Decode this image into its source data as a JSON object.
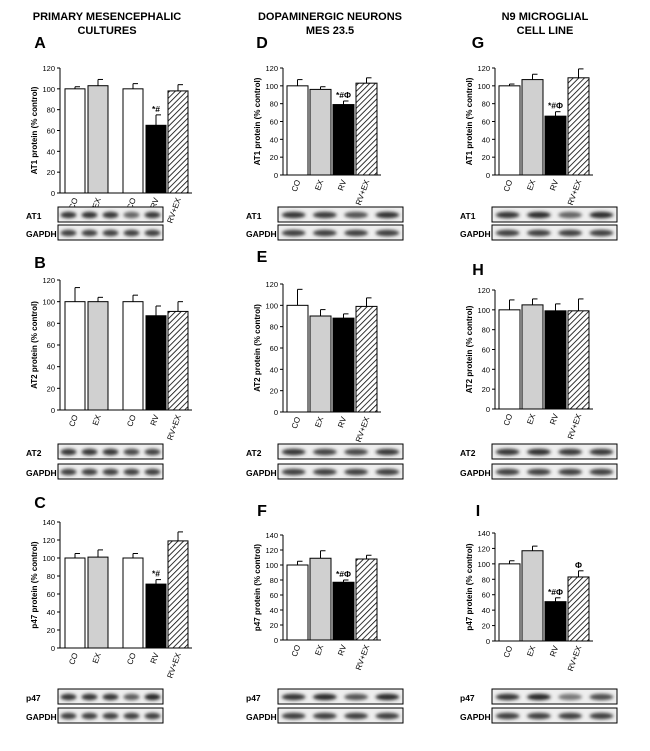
{
  "headers": [
    {
      "line1": "PRIMARY MESENCEPHALIC",
      "line2": "CULTURES"
    },
    {
      "line1": "DOPAMINERGIC NEURONS",
      "line2": "MES 23.5"
    },
    {
      "line1": "N9 MICROGLIAL",
      "line2": "CELL LINE"
    }
  ],
  "blot_labels": {
    "gapdh": "GAPDH"
  },
  "colors": {
    "co": "#ffffff",
    "ex": "#d0d0d0",
    "rv": "#000000",
    "rvex": "hatched"
  },
  "chart_data": [
    {
      "type": "bar",
      "panel": "A",
      "ylabel": "AT1 protein (% control)",
      "ylim": [
        0,
        120
      ],
      "ticks": [
        0,
        20,
        40,
        60,
        80,
        100,
        120
      ],
      "categories": [
        "CO",
        "EX",
        "CO",
        "RV",
        "RV+EX"
      ],
      "values": [
        100,
        103,
        100,
        65,
        98
      ],
      "errors": [
        2,
        6,
        5,
        10,
        6
      ],
      "annotations": [
        "",
        "",
        "",
        "*#",
        ""
      ],
      "blot_protein": "AT1"
    },
    {
      "type": "bar",
      "panel": "B",
      "ylabel": "AT2 protein (% control)",
      "ylim": [
        0,
        120
      ],
      "ticks": [
        0,
        20,
        40,
        60,
        80,
        100,
        120
      ],
      "categories": [
        "CO",
        "EX",
        "CO",
        "RV",
        "RV+EX"
      ],
      "values": [
        100,
        100,
        100,
        87,
        91
      ],
      "errors": [
        13,
        4,
        6,
        9,
        9
      ],
      "annotations": [
        "",
        "",
        "",
        "",
        ""
      ],
      "blot_protein": "AT2"
    },
    {
      "type": "bar",
      "panel": "C",
      "ylabel": "p47 protein (% control)",
      "ylim": [
        0,
        140
      ],
      "ticks": [
        0,
        20,
        40,
        60,
        80,
        100,
        120,
        140
      ],
      "categories": [
        "CO",
        "EX",
        "CO",
        "RV",
        "RV+EX"
      ],
      "values": [
        100,
        101,
        100,
        71,
        119
      ],
      "errors": [
        5,
        8,
        5,
        5,
        10
      ],
      "annotations": [
        "",
        "",
        "",
        "*#",
        ""
      ],
      "blot_protein": "p47"
    },
    {
      "type": "bar",
      "panel": "D",
      "ylabel": "AT1 protein (% control)",
      "ylim": [
        0,
        120
      ],
      "ticks": [
        0,
        20,
        40,
        60,
        80,
        100,
        120
      ],
      "categories": [
        "CO",
        "EX",
        "RV",
        "RV+EX"
      ],
      "values": [
        100,
        96,
        79,
        103
      ],
      "errors": [
        7,
        3,
        4,
        6
      ],
      "annotations": [
        "",
        "",
        "*#Φ",
        ""
      ],
      "blot_protein": "AT1"
    },
    {
      "type": "bar",
      "panel": "E",
      "ylabel": "AT2 protein (% control)",
      "ylim": [
        0,
        120
      ],
      "ticks": [
        0,
        20,
        40,
        60,
        80,
        100,
        120
      ],
      "categories": [
        "CO",
        "EX",
        "RV",
        "RV+EX"
      ],
      "values": [
        100,
        90,
        88,
        99
      ],
      "errors": [
        15,
        6,
        4,
        8
      ],
      "annotations": [
        "",
        "",
        "",
        ""
      ],
      "blot_protein": "AT2"
    },
    {
      "type": "bar",
      "panel": "F",
      "ylabel": "p47 protein (% control)",
      "ylim": [
        0,
        140
      ],
      "ticks": [
        0,
        20,
        40,
        60,
        80,
        100,
        120,
        140
      ],
      "categories": [
        "CO",
        "EX",
        "RV",
        "RV+EX"
      ],
      "values": [
        100,
        109,
        77,
        108
      ],
      "errors": [
        5,
        10,
        3,
        5
      ],
      "annotations": [
        "",
        "",
        "*#Φ",
        ""
      ],
      "blot_protein": "p47"
    },
    {
      "type": "bar",
      "panel": "G",
      "ylabel": "AT1 protein (% control)",
      "ylim": [
        0,
        120
      ],
      "ticks": [
        0,
        20,
        40,
        60,
        80,
        100,
        120
      ],
      "categories": [
        "CO",
        "EX",
        "RV",
        "RV+EX"
      ],
      "values": [
        100,
        107,
        66,
        109
      ],
      "errors": [
        2,
        6,
        5,
        10
      ],
      "annotations": [
        "",
        "",
        "*#Φ",
        ""
      ],
      "blot_protein": "AT1"
    },
    {
      "type": "bar",
      "panel": "H",
      "ylabel": "AT2 protein (% control)",
      "ylim": [
        0,
        120
      ],
      "ticks": [
        0,
        20,
        40,
        60,
        80,
        100,
        120
      ],
      "categories": [
        "CO",
        "EX",
        "RV",
        "RV+EX"
      ],
      "values": [
        100,
        105,
        99,
        99
      ],
      "errors": [
        10,
        6,
        7,
        12
      ],
      "annotations": [
        "",
        "",
        "",
        ""
      ],
      "blot_protein": "AT2"
    },
    {
      "type": "bar",
      "panel": "I",
      "ylabel": "p47 protein (% control)",
      "ylim": [
        0,
        140
      ],
      "ticks": [
        0,
        20,
        40,
        60,
        80,
        100,
        120,
        140
      ],
      "categories": [
        "CO",
        "EX",
        "RV",
        "RV+EX"
      ],
      "values": [
        100,
        117,
        51,
        83
      ],
      "errors": [
        4,
        6,
        5,
        8
      ],
      "annotations": [
        "",
        "",
        "*#Φ",
        "Φ"
      ],
      "blot_protein": "p47"
    }
  ]
}
